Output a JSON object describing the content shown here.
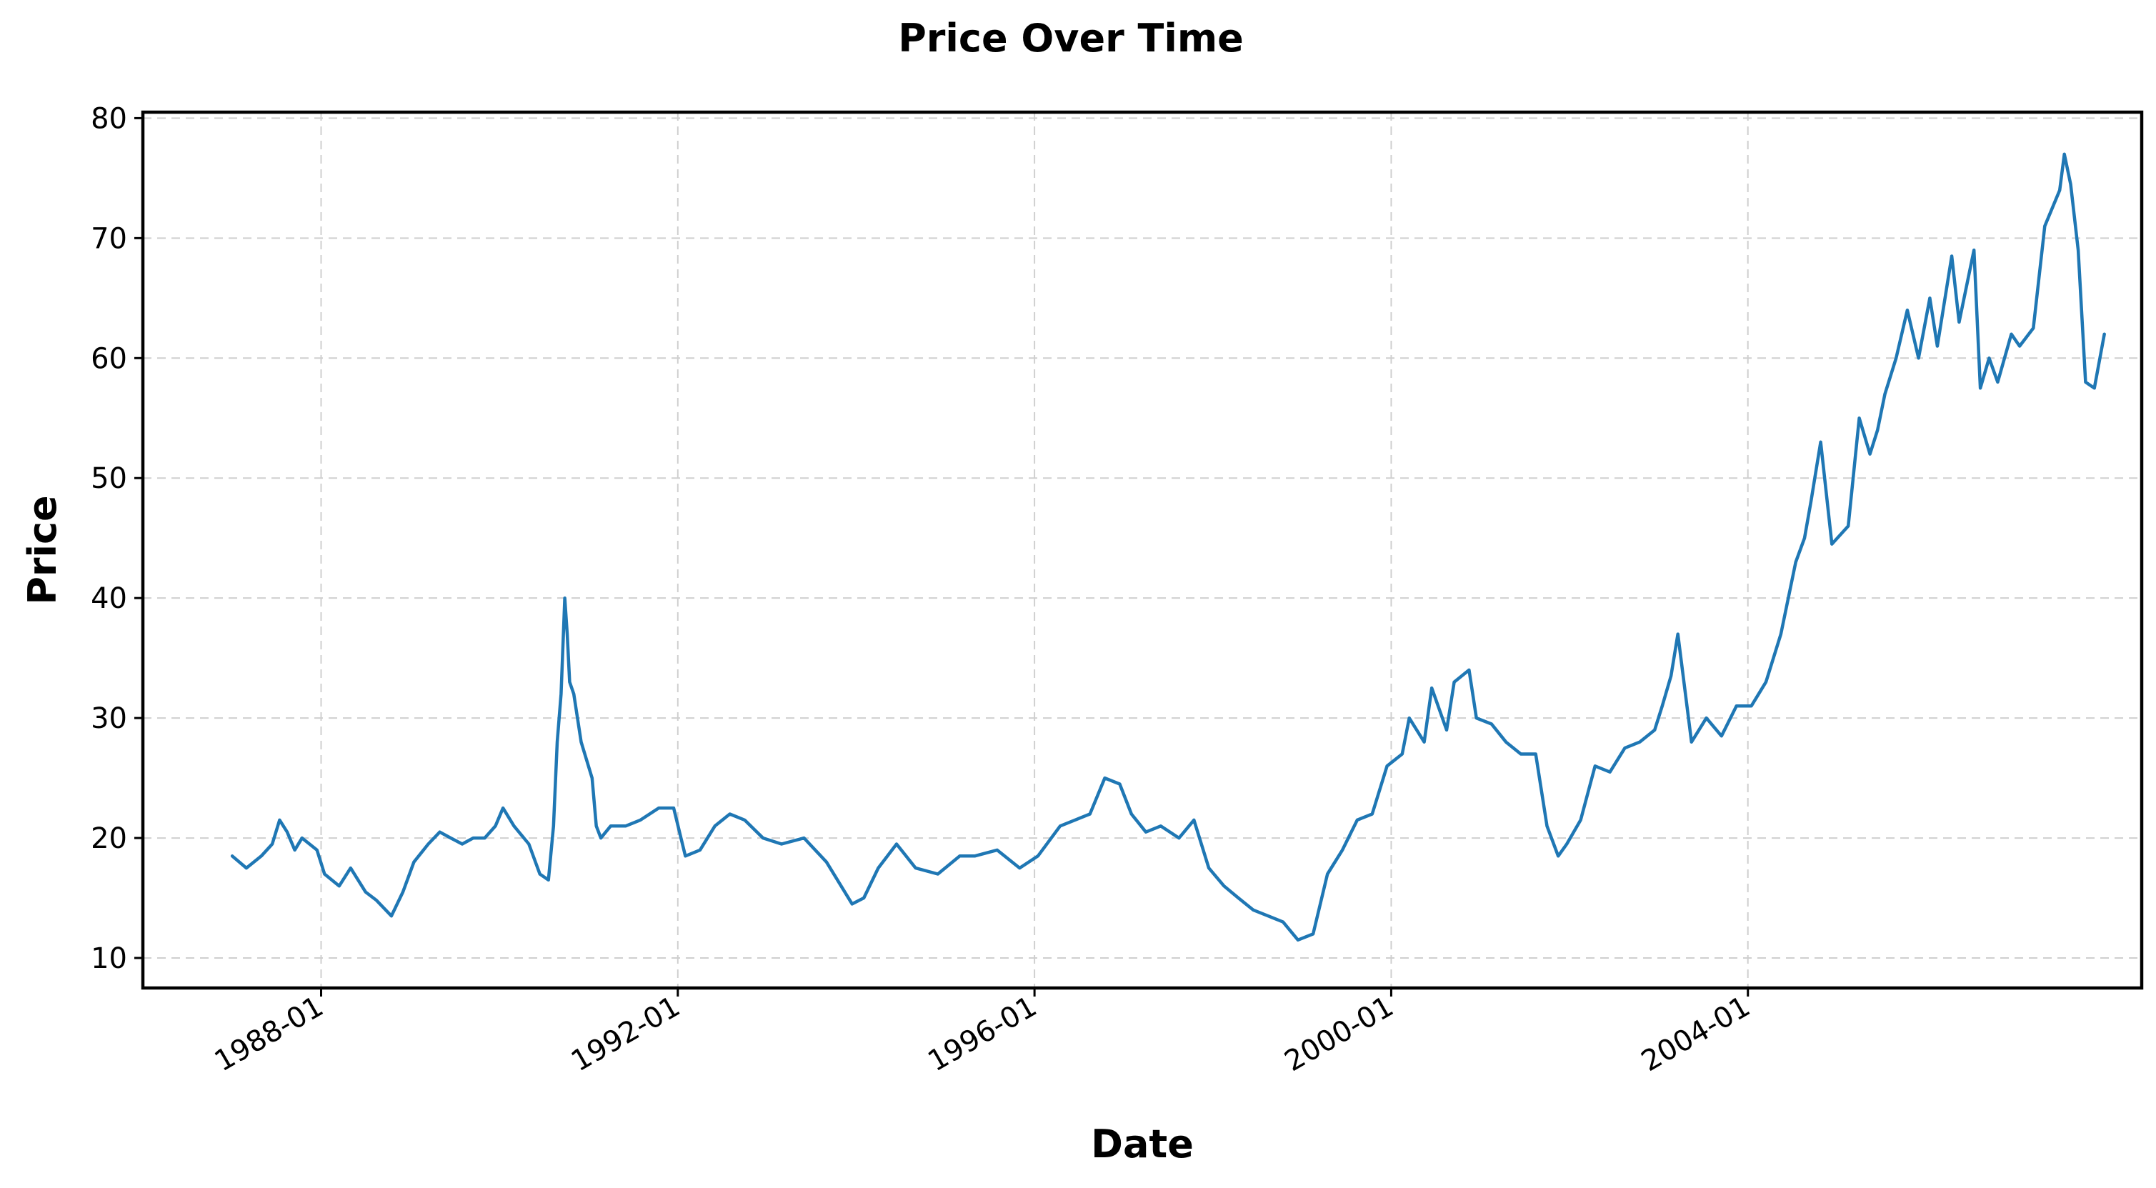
{
  "chart_data": {
    "type": "line",
    "title": "Price Over Time",
    "xlabel": "Date",
    "ylabel": "Price",
    "xlim": [
      "1986-01-01",
      "2008-06-01"
    ],
    "ylim": [
      7.5,
      80.5
    ],
    "x_ticks": [
      "1988-01",
      "1992-01",
      "1996-01",
      "2000-01",
      "2004-01"
    ],
    "y_ticks": [
      10,
      20,
      30,
      40,
      50,
      60,
      70,
      80
    ],
    "grid": true,
    "legend": "none",
    "color": "#1f77b4",
    "series": [
      {
        "x": [
          "1987-01-02",
          "1987-03-01",
          "1987-05-01",
          "1987-06-15",
          "1987-07-15",
          "1987-08-15",
          "1987-09-15",
          "1987-10-15",
          "1987-12-15",
          "1988-01-15",
          "1988-03-15",
          "1988-05-01",
          "1988-07-01",
          "1988-08-15",
          "1988-10-15",
          "1988-12-01",
          "1989-01-15",
          "1989-03-15",
          "1989-05-01",
          "1989-06-15",
          "1989-08-01",
          "1989-09-15",
          "1989-11-01",
          "1989-12-15",
          "1990-01-15",
          "1990-03-01",
          "1990-05-01",
          "1990-06-15",
          "1990-07-20",
          "1990-08-10",
          "1990-08-25",
          "1990-09-10",
          "1990-09-25",
          "1990-10-05",
          "1990-10-15",
          "1990-11-01",
          "1990-12-01",
          "1991-01-15",
          "1991-02-01",
          "1991-02-20",
          "1991-04-01",
          "1991-06-01",
          "1991-08-01",
          "1991-10-15",
          "1991-12-15",
          "1992-02-01",
          "1992-04-01",
          "1992-06-01",
          "1992-08-01",
          "1992-10-01",
          "1992-12-15",
          "1993-03-01",
          "1993-06-01",
          "1993-09-01",
          "1993-12-15",
          "1994-02-01",
          "1994-04-01",
          "1994-06-15",
          "1994-09-01",
          "1994-12-01",
          "1995-03-01",
          "1995-05-01",
          "1995-08-01",
          "1995-11-01",
          "1996-01-15",
          "1996-04-15",
          "1996-06-15",
          "1996-08-15",
          "1996-10-15",
          "1996-12-15",
          "1997-02-01",
          "1997-04-01",
          "1997-06-01",
          "1997-08-15",
          "1997-10-15",
          "1997-12-15",
          "1998-02-15",
          "1998-04-15",
          "1998-06-15",
          "1998-08-15",
          "1998-10-15",
          "1998-12-15",
          "1999-02-15",
          "1999-04-15",
          "1999-06-15",
          "1999-08-15",
          "1999-10-15",
          "1999-12-15",
          "2000-02-15",
          "2000-03-15",
          "2000-05-15",
          "2000-06-15",
          "2000-08-15",
          "2000-09-15",
          "2000-11-15",
          "2000-12-15",
          "2001-02-15",
          "2001-04-15",
          "2001-06-15",
          "2001-08-15",
          "2001-09-30",
          "2001-11-15",
          "2001-12-20",
          "2002-02-15",
          "2002-04-15",
          "2002-06-15",
          "2002-08-15",
          "2002-10-15",
          "2002-12-15",
          "2003-01-15",
          "2003-02-20",
          "2003-03-20",
          "2003-05-15",
          "2003-07-15",
          "2003-09-15",
          "2003-11-15",
          "2004-01-15",
          "2004-03-15",
          "2004-05-15",
          "2004-07-15",
          "2004-08-20",
          "2004-09-15",
          "2004-10-25",
          "2004-12-10",
          "2005-02-15",
          "2005-04-01",
          "2005-05-15",
          "2005-06-15",
          "2005-07-15",
          "2005-08-30",
          "2005-10-15",
          "2005-11-30",
          "2006-01-15",
          "2006-02-15",
          "2006-04-15",
          "2006-05-15",
          "2006-07-15",
          "2006-08-10",
          "2006-09-15",
          "2006-10-20",
          "2006-12-15",
          "2007-01-18",
          "2007-03-15",
          "2007-05-01",
          "2007-07-01",
          "2007-07-20",
          "2007-08-15",
          "2007-09-15",
          "2007-10-15",
          "2007-11-20",
          "2007-12-31"
        ],
        "y": [
          18.5,
          17.5,
          18.5,
          19.5,
          21.5,
          20.5,
          19.0,
          20.0,
          19.0,
          17.0,
          16.0,
          17.5,
          15.5,
          14.8,
          13.5,
          15.5,
          18.0,
          19.5,
          20.5,
          20.0,
          19.5,
          20.0,
          20.0,
          21.0,
          22.5,
          21.0,
          19.5,
          17.0,
          16.5,
          21.0,
          28.0,
          32.0,
          40.0,
          37.0,
          33.0,
          32.0,
          28.0,
          25.0,
          21.0,
          20.0,
          21.0,
          21.0,
          21.5,
          22.5,
          22.5,
          18.5,
          19.0,
          21.0,
          22.0,
          21.5,
          20.0,
          19.5,
          20.0,
          18.0,
          14.5,
          15.0,
          17.5,
          19.5,
          17.5,
          17.0,
          18.5,
          18.5,
          19.0,
          17.5,
          18.5,
          21.0,
          21.5,
          22.0,
          25.0,
          24.5,
          22.0,
          20.5,
          21.0,
          20.0,
          21.5,
          17.5,
          16.0,
          15.0,
          14.0,
          13.5,
          13.0,
          11.5,
          12.0,
          17.0,
          19.0,
          21.5,
          22.0,
          26.0,
          27.0,
          30.0,
          28.0,
          32.5,
          29.0,
          33.0,
          34.0,
          30.0,
          29.5,
          28.0,
          27.0,
          27.0,
          21.0,
          18.5,
          19.5,
          21.5,
          26.0,
          25.5,
          27.5,
          28.0,
          29.0,
          31.0,
          33.5,
          37.0,
          28.0,
          30.0,
          28.5,
          31.0,
          31.0,
          33.0,
          37.0,
          43.0,
          45.0,
          48.0,
          53.0,
          44.5,
          46.0,
          55.0,
          52.0,
          54.0,
          57.0,
          60.0,
          64.0,
          60.0,
          65.0,
          61.0,
          68.5,
          63.0,
          69.0,
          57.5,
          60.0,
          58.0,
          62.0,
          61.0,
          62.5,
          71.0,
          74.0,
          77.0,
          74.5,
          69.0,
          58.0,
          57.5,
          62.0
        ]
      }
    ]
  }
}
